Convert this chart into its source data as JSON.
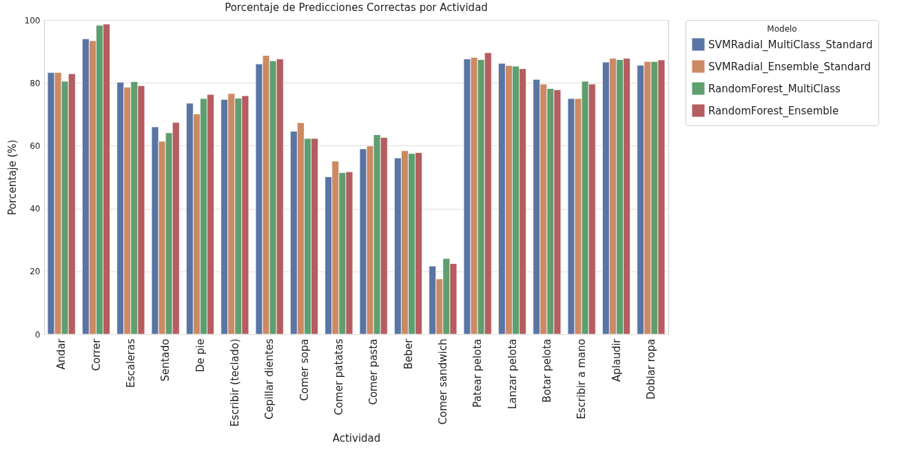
{
  "chart_data": {
    "type": "bar",
    "title": "Porcentaje de Predicciones Correctas por Actividad",
    "xlabel": "Actividad",
    "ylabel": "Porcentaje (%)",
    "legend_title": "Modelo",
    "categories": [
      "Andar",
      "Correr",
      "Escaleras",
      "Sentado",
      "De pie",
      "Escribir (teclado)",
      "Cepillar dientes",
      "Comer sopa",
      "Comer patatas",
      "Comer pasta",
      "Beber",
      "Comer sandwich",
      "Patear pelota",
      "Lanzar pelota",
      "Botar pelota",
      "Escribir a mano",
      "Aplaudir",
      "Doblar ropa"
    ],
    "series": [
      {
        "name": "SVMRadial_MultiClass_Standard",
        "color": "#5975a4",
        "values": [
          83.3,
          94,
          80.2,
          66,
          73.5,
          74.7,
          86,
          64.6,
          50.1,
          59,
          56.1,
          21.7,
          87.6,
          86.2,
          81.1,
          75,
          86.6,
          85.6
        ]
      },
      {
        "name": "SVMRadial_Ensemble_Standard",
        "color": "#cc8963",
        "values": [
          83.3,
          93.4,
          78.6,
          61.4,
          70.1,
          76.6,
          88.7,
          67.3,
          55.1,
          59.9,
          58.4,
          17.6,
          88.1,
          85.5,
          79.6,
          75,
          87.8,
          86.8
        ]
      },
      {
        "name": "RandomForest_MultiClass",
        "color": "#5f9e6e",
        "values": [
          80.5,
          98.3,
          80.4,
          64.1,
          75,
          75.1,
          87,
          62.3,
          51.4,
          63.5,
          57.5,
          24.1,
          87.4,
          85.3,
          78.2,
          80.5,
          87.4,
          86.8
        ]
      },
      {
        "name": "RandomForest_Ensemble",
        "color": "#b55d60",
        "values": [
          82.9,
          98.7,
          79.1,
          67.4,
          76.3,
          75.9,
          87.6,
          62.3,
          51.7,
          62.6,
          57.8,
          22.5,
          89.6,
          84.5,
          77.8,
          79.6,
          87.8,
          87.3
        ]
      }
    ],
    "ylim": [
      0,
      100
    ],
    "yticks": [
      0,
      20,
      40,
      60,
      80,
      100
    ],
    "grid": "y",
    "legend": "top right"
  }
}
